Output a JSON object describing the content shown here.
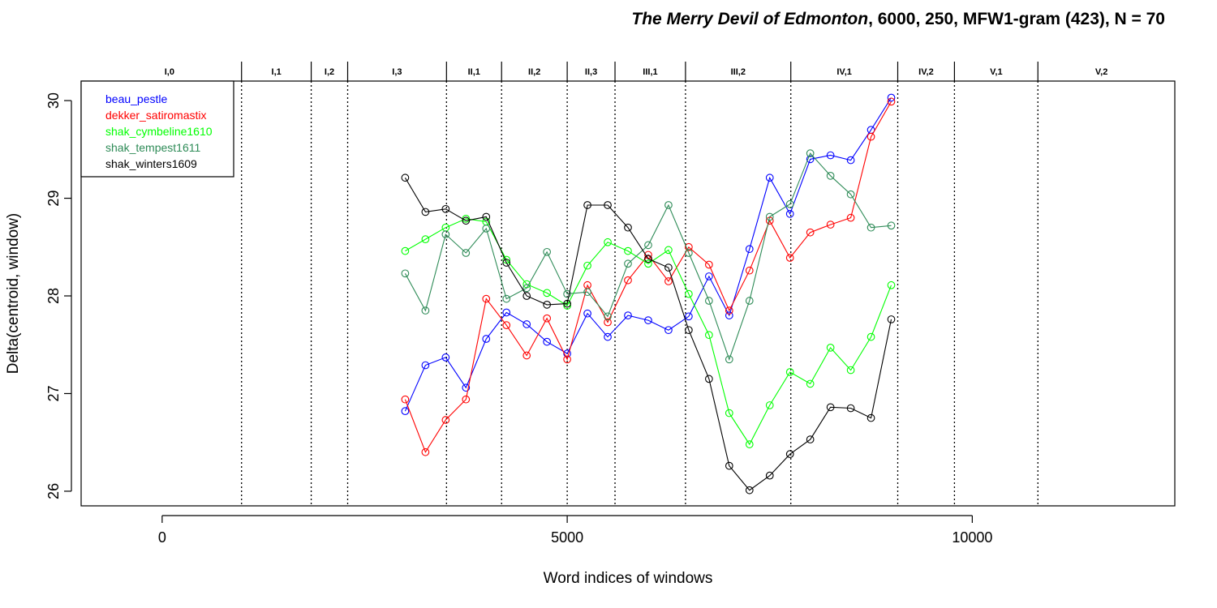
{
  "title": {
    "italic": "The Merry Devil of Edmonton",
    "rest": ", 6000, 250, MFW1-gram (423), N = 70"
  },
  "chart_data": {
    "type": "line",
    "xlabel": "Word indices of windows",
    "ylabel": "Delta(centroid, window)",
    "xlim": [
      -1000,
      12500
    ],
    "ylim": [
      25.85,
      30.2
    ],
    "x_ticks": [
      0,
      5000,
      10000
    ],
    "y_ticks": [
      26,
      27,
      28,
      29,
      30
    ],
    "grid": false,
    "legend_position": "top-left",
    "sections": {
      "labels": [
        "I,0",
        "I,1",
        "I,2",
        "I,3",
        "II,1",
        "II,2",
        "II,3",
        "III,1",
        "III,2",
        "IV,1",
        "IV,2",
        "V,1",
        "V,2"
      ],
      "boundaries": [
        980,
        1840,
        2290,
        3510,
        4190,
        5000,
        5590,
        6460,
        7760,
        9080,
        9780,
        10810
      ]
    },
    "x": [
      3000,
      3250,
      3500,
      3750,
      4000,
      4250,
      4500,
      4750,
      5000,
      5250,
      5500,
      5750,
      6000,
      6250,
      6500,
      6750,
      7000,
      7250,
      7500,
      7750,
      8000,
      8250,
      8500,
      8750,
      9000
    ],
    "series": [
      {
        "name": "beau_pestle",
        "color": "#0000ff",
        "values": [
          26.82,
          27.29,
          27.37,
          27.06,
          27.56,
          27.83,
          27.71,
          27.53,
          27.41,
          27.82,
          27.58,
          27.8,
          27.75,
          27.65,
          27.79,
          28.2,
          27.8,
          28.48,
          29.21,
          28.84,
          29.4,
          29.44,
          29.39,
          29.7,
          30.03
        ]
      },
      {
        "name": "dekker_satiromastix",
        "color": "#ff0000",
        "values": [
          26.94,
          26.4,
          26.73,
          26.94,
          27.97,
          27.7,
          27.39,
          27.77,
          27.35,
          28.11,
          27.73,
          28.16,
          28.42,
          28.15,
          28.5,
          28.32,
          27.85,
          28.26,
          28.77,
          28.39,
          28.65,
          28.73,
          28.8,
          29.63,
          29.99
        ]
      },
      {
        "name": "shak_cymbeline1610",
        "color": "#00ff00",
        "values": [
          28.46,
          28.58,
          28.7,
          28.79,
          28.76,
          28.37,
          28.12,
          28.03,
          27.9,
          28.31,
          28.55,
          28.46,
          28.33,
          28.47,
          28.02,
          27.6,
          26.8,
          26.48,
          26.88,
          27.22,
          27.1,
          27.47,
          27.24,
          27.58,
          28.11
        ]
      },
      {
        "name": "shak_tempest1611",
        "color": "#2e8b57",
        "values": [
          28.23,
          27.85,
          28.63,
          28.44,
          28.69,
          27.97,
          28.08,
          28.45,
          28.02,
          28.04,
          27.79,
          28.33,
          28.52,
          28.93,
          28.44,
          27.95,
          27.35,
          27.95,
          28.81,
          28.94,
          29.46,
          29.23,
          29.04,
          28.7,
          28.72
        ]
      },
      {
        "name": "shak_winters1609",
        "color": "#000000",
        "values": [
          29.21,
          28.86,
          28.89,
          28.77,
          28.81,
          28.34,
          28.0,
          27.91,
          27.92,
          28.93,
          28.93,
          28.7,
          28.38,
          28.29,
          27.65,
          27.15,
          26.26,
          26.01,
          26.16,
          26.38,
          26.53,
          26.86,
          26.85,
          26.75,
          27.76
        ]
      }
    ]
  }
}
